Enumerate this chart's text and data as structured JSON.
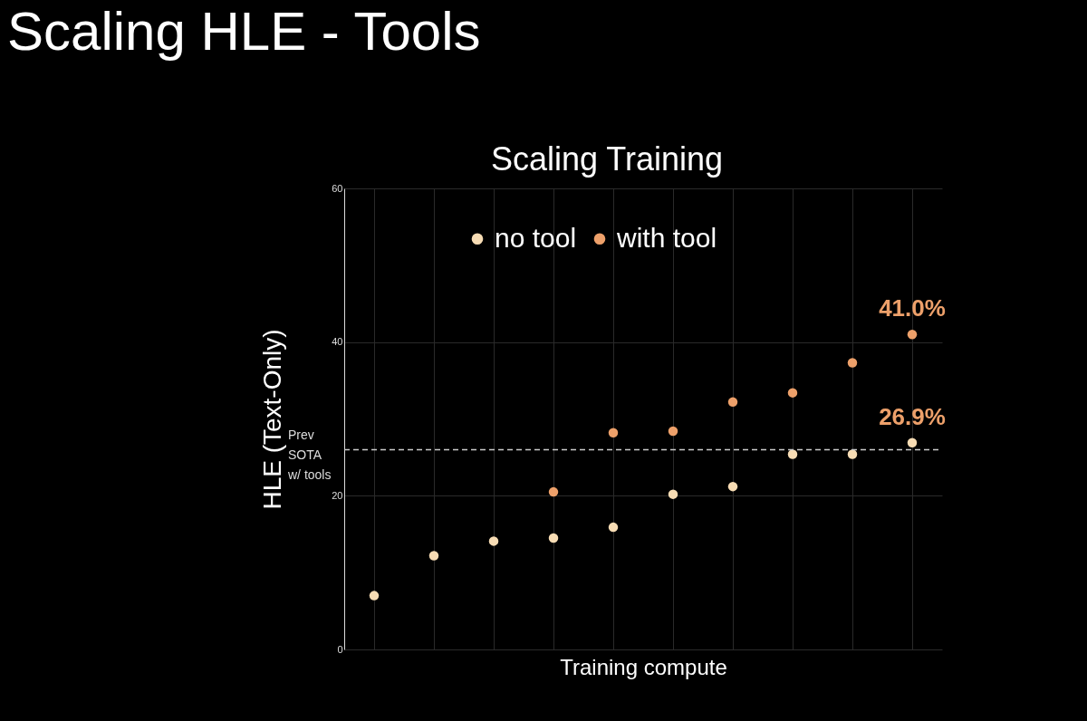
{
  "chart_data": {
    "type": "scatter",
    "title": "Scaling HLE - Tools",
    "subtitle": "Scaling Training",
    "xlabel": "Training compute",
    "ylabel": "HLE (Text-Only)",
    "categories": [
      null,
      null,
      null,
      null,
      null,
      null,
      null,
      null,
      null,
      null
    ],
    "series": [
      {
        "name": "no tool",
        "color": "#f7dcb4",
        "values": [
          7.0,
          12.2,
          14.1,
          14.5,
          15.9,
          20.2,
          21.2,
          25.4,
          25.4,
          26.9
        ],
        "value_labels": [
          null,
          null,
          null,
          null,
          null,
          null,
          null,
          null,
          null,
          "26.9%"
        ]
      },
      {
        "name": "with tool",
        "color": "#eda06a",
        "values": [
          null,
          null,
          null,
          20.5,
          28.2,
          28.4,
          32.2,
          33.4,
          37.3,
          41.0
        ],
        "value_labels": [
          null,
          null,
          null,
          null,
          null,
          null,
          null,
          null,
          null,
          "41.0%"
        ]
      }
    ],
    "ylim": [
      0,
      60
    ],
    "yticks": [
      0,
      20,
      40,
      60
    ],
    "grid": true,
    "legend": "top",
    "marker": "circle",
    "tick_labels": "y",
    "ref_lines": [
      {
        "axis": "y",
        "value": 26,
        "label": "Prev SOTA w/ tools",
        "color": "#cccccc",
        "line_style": "dashed"
      }
    ]
  }
}
